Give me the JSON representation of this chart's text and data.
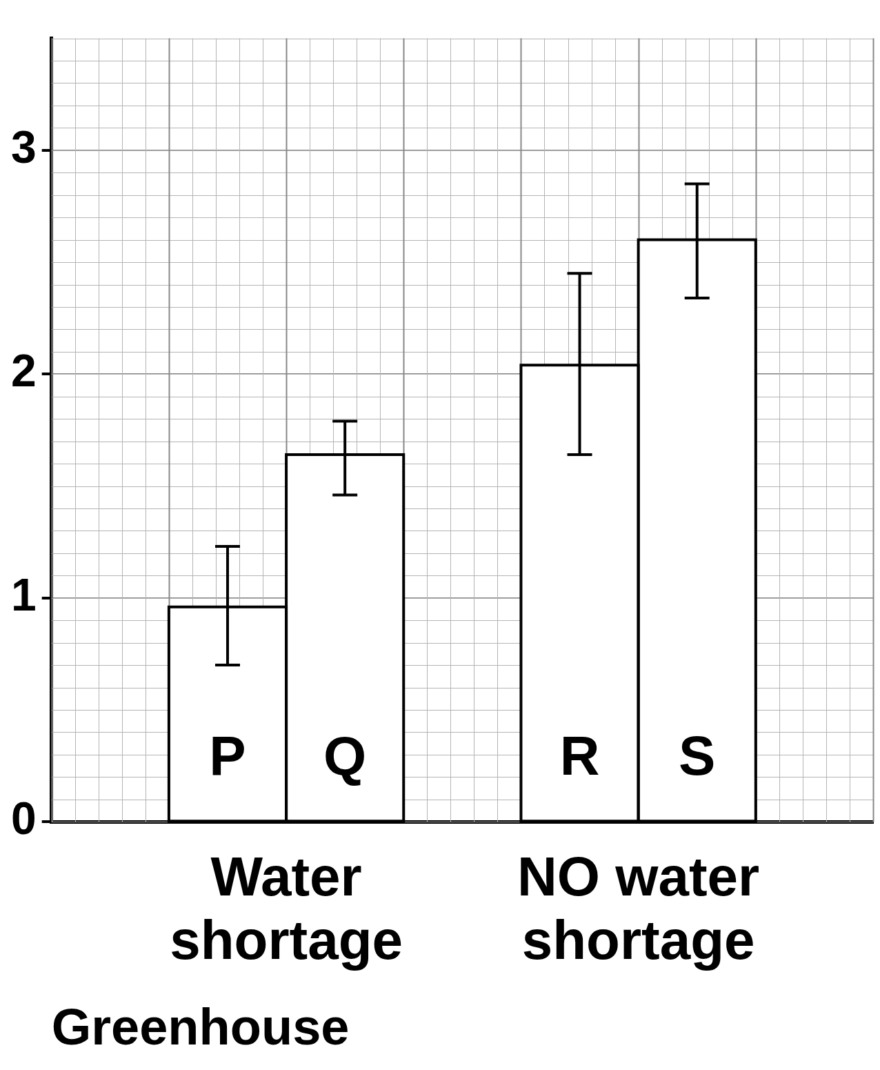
{
  "chart_data": {
    "type": "bar",
    "xlabel": "Greenhouse",
    "categories": [
      null,
      "P",
      "Q",
      null,
      "R",
      "S",
      null
    ],
    "values": [
      null,
      0.96,
      1.64,
      null,
      2.04,
      2.6,
      null
    ],
    "errors": [
      null,
      [
        0.7,
        1.23
      ],
      [
        1.46,
        1.79
      ],
      null,
      [
        1.64,
        2.45
      ],
      [
        2.34,
        2.85
      ],
      null
    ],
    "color": "#ffffff",
    "ylim": [
      0,
      3.5
    ],
    "yticks": [
      0,
      1,
      2,
      3
    ],
    "grid": true,
    "legend": false,
    "annotations": [
      "Water shortage",
      "NO water shortage"
    ]
  }
}
